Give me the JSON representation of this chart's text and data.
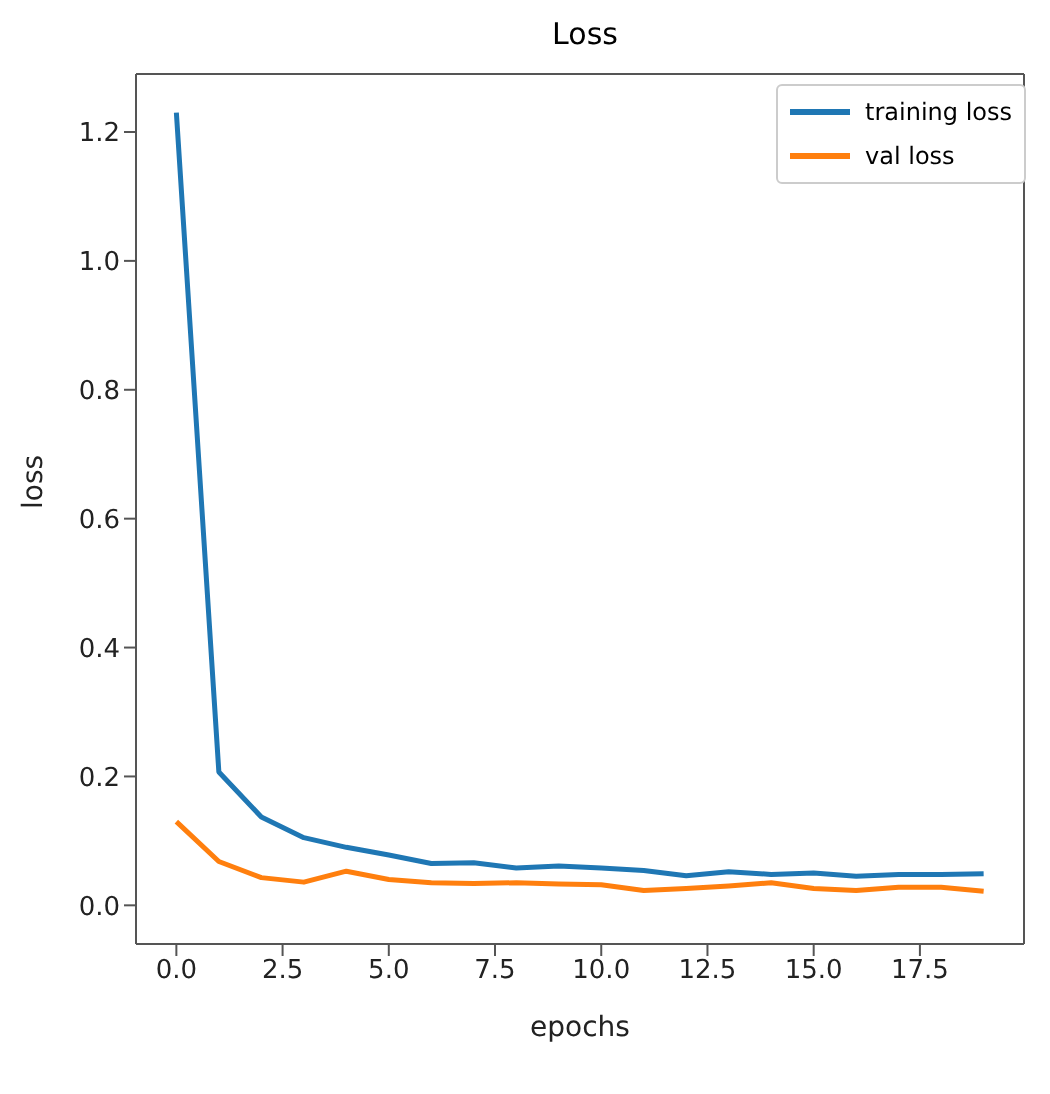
{
  "chart_data": {
    "type": "line",
    "title": "Loss",
    "xlabel": "epochs",
    "ylabel": "loss",
    "x": [
      0,
      1,
      2,
      3,
      4,
      5,
      6,
      7,
      8,
      9,
      10,
      11,
      12,
      13,
      14,
      15,
      16,
      17,
      18,
      19
    ],
    "series": [
      {
        "name": "training loss",
        "color": "#1f77b4",
        "values": [
          1.23,
          0.207,
          0.137,
          0.105,
          0.09,
          0.078,
          0.065,
          0.066,
          0.058,
          0.061,
          0.058,
          0.054,
          0.046,
          0.052,
          0.048,
          0.05,
          0.045,
          0.048,
          0.048,
          0.049
        ]
      },
      {
        "name": "val loss",
        "color": "#ff7f0e",
        "values": [
          0.13,
          0.068,
          0.043,
          0.036,
          0.053,
          0.04,
          0.035,
          0.034,
          0.035,
          0.033,
          0.032,
          0.023,
          0.026,
          0.03,
          0.035,
          0.026,
          0.023,
          0.028,
          0.028,
          0.022
        ]
      }
    ],
    "xlim": [
      -0.95,
      19.95
    ],
    "xticks": [
      {
        "value": 0,
        "label": "0.0"
      },
      {
        "value": 2.5,
        "label": "2.5"
      },
      {
        "value": 5,
        "label": "5.0"
      },
      {
        "value": 7.5,
        "label": "7.5"
      },
      {
        "value": 10,
        "label": "10.0"
      },
      {
        "value": 12.5,
        "label": "12.5"
      },
      {
        "value": 15,
        "label": "15.0"
      },
      {
        "value": 17.5,
        "label": "17.5"
      }
    ],
    "ylim": [
      -0.06,
      1.29
    ],
    "yticks": [
      {
        "value": 0,
        "label": "0.0"
      },
      {
        "value": 0.2,
        "label": "0.2"
      },
      {
        "value": 0.4,
        "label": "0.4"
      },
      {
        "value": 0.6,
        "label": "0.6"
      },
      {
        "value": 0.8,
        "label": "0.8"
      },
      {
        "value": 1,
        "label": "1.0"
      },
      {
        "value": 1.2,
        "label": "1.2"
      }
    ],
    "legend": "top right",
    "grid": false,
    "marker": "none",
    "line_style": "solid"
  }
}
